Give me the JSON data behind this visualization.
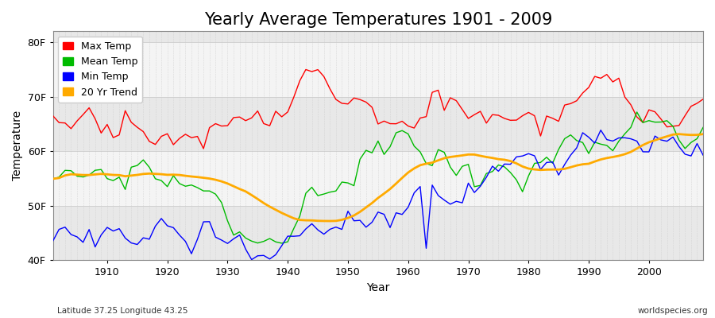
{
  "title": "Yearly Average Temperatures 1901 - 2009",
  "xlabel": "Year",
  "ylabel": "Temperature",
  "years_start": 1901,
  "years_end": 2009,
  "yticks": [
    40,
    50,
    60,
    70,
    80
  ],
  "ytick_labels": [
    "40F",
    "50F",
    "60F",
    "70F",
    "80F"
  ],
  "xticks": [
    1910,
    1920,
    1930,
    1940,
    1950,
    1960,
    1970,
    1980,
    1990,
    2000
  ],
  "ylim": [
    40,
    82
  ],
  "xlim": [
    1901,
    2009
  ],
  "outer_bg": "#ffffff",
  "plot_bg_light": "#f0f0f0",
  "plot_bg_dark": "#e0e0e0",
  "grid_color": "#cccccc",
  "legend_entries": [
    "Max Temp",
    "Mean Temp",
    "Min Temp",
    "20 Yr Trend"
  ],
  "line_colors": {
    "max": "#ff0000",
    "mean": "#00bb00",
    "min": "#0000ff",
    "trend": "#ffaa00"
  },
  "line_widths": {
    "max": 1.0,
    "mean": 1.0,
    "min": 1.0,
    "trend": 2.0
  },
  "footer_left": "Latitude 37.25 Longitude 43.25",
  "footer_right": "worldspecies.org",
  "title_fontsize": 15,
  "axis_label_fontsize": 10,
  "tick_fontsize": 9,
  "legend_fontsize": 9,
  "band_colors": [
    "#e8e8e8",
    "#f4f4f4",
    "#e8e8e8",
    "#f4f4f4",
    "#e8e8e8"
  ]
}
